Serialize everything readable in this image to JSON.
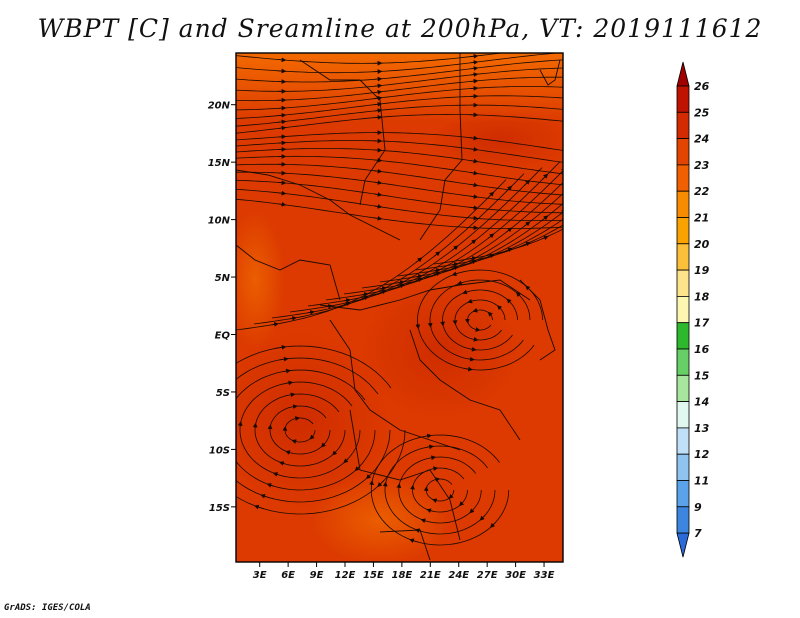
{
  "title": "WBPT [C] and Sreamline at 200hPa, VT: 2019111612",
  "footer": "GrADS: IGES/COLA",
  "chart_data": {
    "type": "heatmap",
    "title": "WBPT [C] and Sreamline at 200hPa, VT: 2019111612",
    "xlabel": "",
    "ylabel": "",
    "x_tick_labels": [
      "3E",
      "6E",
      "9E",
      "12E",
      "15E",
      "18E",
      "21E",
      "24E",
      "27E",
      "30E",
      "33E"
    ],
    "x_tick_values": [
      3,
      6,
      9,
      12,
      15,
      18,
      21,
      24,
      27,
      30,
      33
    ],
    "y_tick_labels": [
      "20N",
      "15N",
      "10N",
      "5N",
      "EQ",
      "5S",
      "10S",
      "15S"
    ],
    "y_tick_values": [
      20,
      15,
      10,
      5,
      0,
      -5,
      -10,
      -15
    ],
    "xlim": [
      0.5,
      35
    ],
    "ylim": [
      -19.8,
      24.5
    ],
    "field_range_shown": [
      22,
      25
    ],
    "colorbar": {
      "levels": [
        "26",
        "25",
        "24",
        "23",
        "22",
        "21",
        "20",
        "19",
        "18",
        "17",
        "16",
        "15",
        "14",
        "13",
        "12",
        "11",
        "9",
        "7"
      ],
      "colors": [
        "#a00000",
        "#c01200",
        "#d42a00",
        "#e34500",
        "#f06000",
        "#f78c00",
        "#f9a200",
        "#fbbf3a",
        "#fde48a",
        "#fdf6b0",
        "#2db82d",
        "#66d066",
        "#a8e6a0",
        "#e0f8f0",
        "#c0e0f8",
        "#90c4f0",
        "#5aa2ea",
        "#3c86e2",
        "#2a6ad8"
      ],
      "extends": "both"
    }
  }
}
